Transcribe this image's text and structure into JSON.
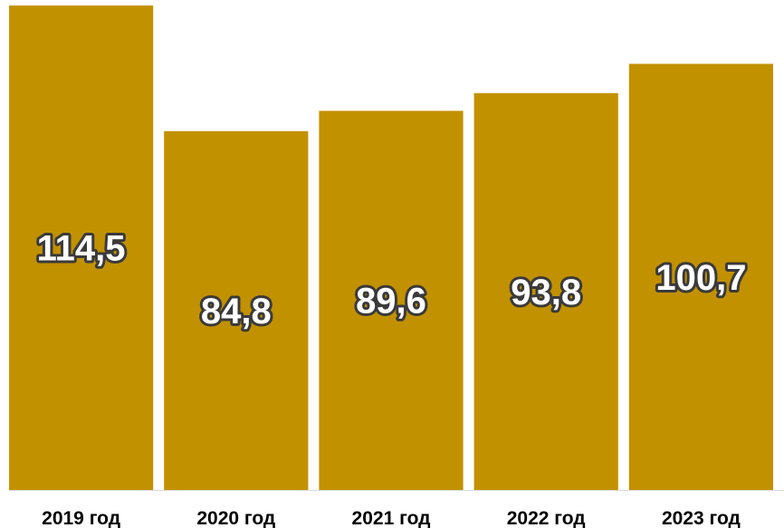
{
  "chart_data": {
    "type": "bar",
    "categories": [
      "2019 год",
      "2020 год",
      "2021 год",
      "2022 год",
      "2023 год"
    ],
    "values": [
      114.5,
      84.8,
      89.6,
      93.8,
      100.7
    ],
    "value_labels": [
      "114,5",
      "84,8",
      "89,6",
      "93,8",
      "100,7"
    ],
    "title": "",
    "xlabel": "",
    "ylabel": "",
    "ylim": [
      0,
      115.8
    ],
    "grid": false,
    "legend": "none",
    "colors": {
      "bar": "#C29100",
      "baseline": "#D9D9D9",
      "value_label_fill": "#FFFFFF",
      "value_label_outline": "#3A3A3A"
    }
  }
}
